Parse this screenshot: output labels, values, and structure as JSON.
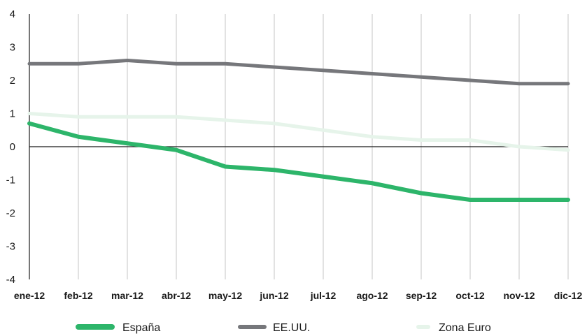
{
  "chart_data": {
    "type": "line",
    "title": "",
    "xlabel": "",
    "ylabel": "",
    "categories": [
      "ene-12",
      "feb-12",
      "mar-12",
      "abr-12",
      "may-12",
      "jun-12",
      "jul-12",
      "ago-12",
      "sep-12",
      "oct-12",
      "nov-12",
      "dic-12"
    ],
    "ylim": [
      -4,
      4
    ],
    "yticks": [
      "4",
      "3",
      "2",
      "1",
      "0",
      "-1",
      "-2",
      "-3",
      "-4"
    ],
    "grid": true,
    "legend_position": "bottom",
    "series": [
      {
        "name": "España",
        "color": "#2db56a",
        "values": [
          0.7,
          0.3,
          0.1,
          -0.1,
          -0.6,
          -0.7,
          -0.9,
          -1.1,
          -1.4,
          -1.6,
          -1.6,
          -1.6
        ]
      },
      {
        "name": "EE.UU.",
        "color": "#76777b",
        "values": [
          2.5,
          2.5,
          2.6,
          2.5,
          2.5,
          2.4,
          2.3,
          2.2,
          2.1,
          2.0,
          1.9,
          1.9
        ]
      },
      {
        "name": "Zona Euro",
        "color": "#e6f4ea",
        "values": [
          1.0,
          0.9,
          0.9,
          0.9,
          0.8,
          0.7,
          0.5,
          0.3,
          0.2,
          0.2,
          0.0,
          -0.1
        ]
      }
    ]
  }
}
